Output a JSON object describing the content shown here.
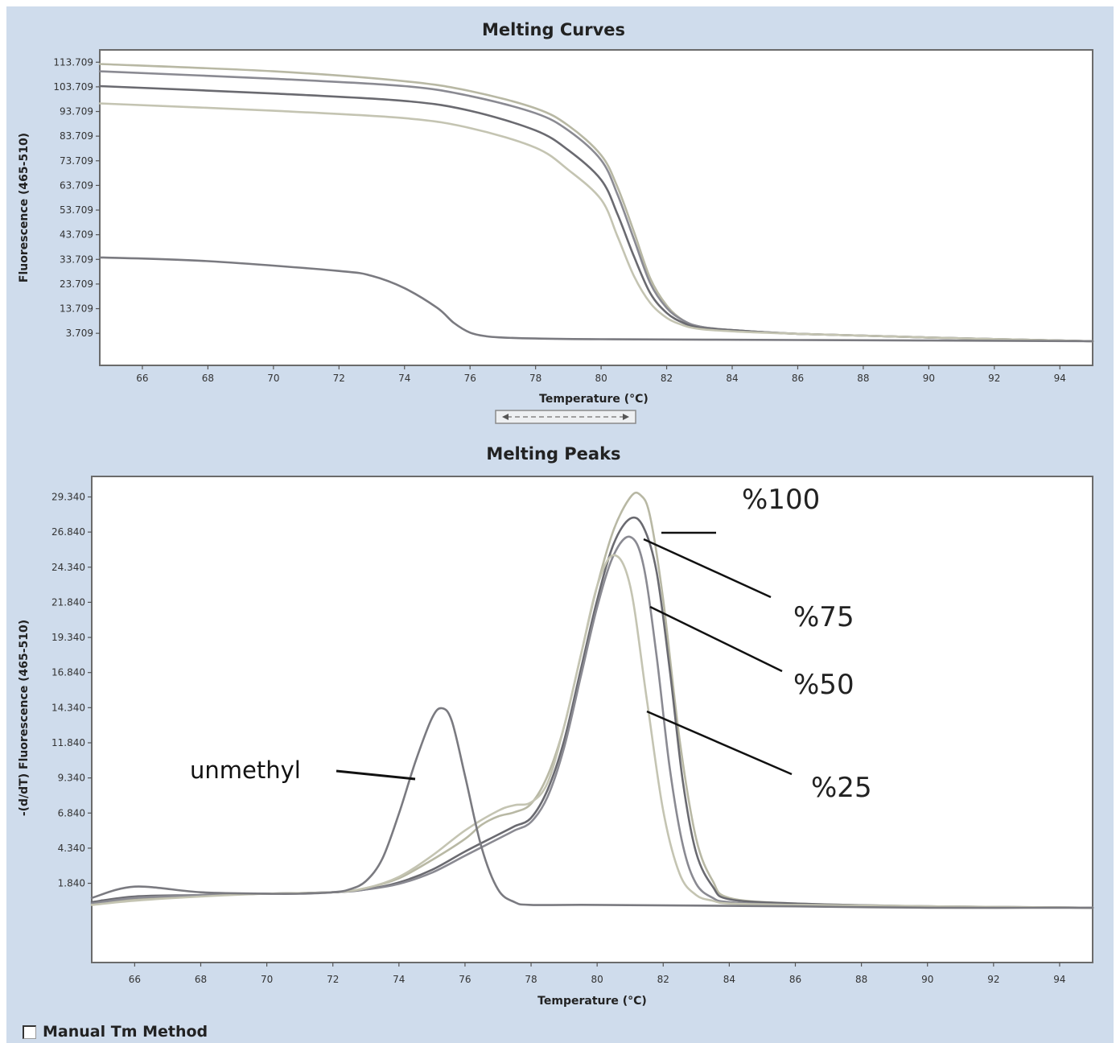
{
  "footer": {
    "manual_tm_label": "Manual Tm Method",
    "manual_tm_checked": false
  },
  "annotations": {
    "unmethyl": "unmethyl",
    "p100": "%100",
    "p75": "%75",
    "p50": "%50",
    "p25": "%25"
  },
  "colors": {
    "panel_background": "#cfdcec",
    "plot_background": "#ffffff",
    "curve_dark": "#6a6a70",
    "curve_mid": "#8a8a92",
    "curve_light": "#b8b8a4",
    "curve_unmethyl": "#7a7a80"
  },
  "chart_data": [
    {
      "type": "line",
      "title": "Melting Curves",
      "xlabel": "Temperature (°C)",
      "ylabel": "Fluorescence (465-510)",
      "xlim": [
        64.7,
        95
      ],
      "ylim": [
        -9.3,
        118.7
      ],
      "x_ticks": [
        66,
        68,
        70,
        72,
        74,
        76,
        78,
        80,
        82,
        84,
        86,
        88,
        90,
        92,
        94
      ],
      "y_ticks": [
        3.709,
        13.709,
        23.709,
        33.709,
        43.709,
        53.709,
        63.709,
        73.709,
        83.709,
        93.709,
        103.709,
        113.709
      ],
      "x_tick_labels": [
        "66",
        "68",
        "70",
        "72",
        "74",
        "76",
        "78",
        "80",
        "82",
        "84",
        "86",
        "88",
        "90",
        "92",
        "94"
      ],
      "y_tick_labels": [
        "3.709",
        "13.709",
        "23.709",
        "33.709",
        "43.709",
        "53.709",
        "63.709",
        "73.709",
        "83.709",
        "93.709",
        "103.709",
        "113.709"
      ],
      "grid": false,
      "series": [
        {
          "color": "#b8b8a4",
          "x": [
            64.7,
            70,
            74,
            76,
            78,
            79,
            80,
            80.5,
            81,
            81.5,
            82,
            82.5,
            83,
            84,
            86,
            90,
            95
          ],
          "y": [
            113,
            110,
            106,
            102,
            95,
            88,
            76,
            63,
            45,
            26,
            15,
            9,
            6.5,
            5,
            3.5,
            2,
            0.5
          ]
        },
        {
          "color": "#8a8a92",
          "x": [
            64.7,
            70,
            74,
            76,
            78,
            79,
            80,
            80.5,
            81,
            81.5,
            82,
            82.5,
            83,
            84,
            86,
            90,
            95
          ],
          "y": [
            110,
            107,
            104,
            100,
            93,
            86,
            74,
            60,
            42,
            24,
            14,
            9,
            6.5,
            5,
            3.5,
            2,
            0.5
          ]
        },
        {
          "color": "#6a6a70",
          "x": [
            64.7,
            70,
            74,
            76,
            78,
            79,
            80,
            80.5,
            81,
            81.5,
            82,
            82.5,
            83,
            84,
            86,
            90,
            95
          ],
          "y": [
            104,
            101,
            98,
            94,
            86,
            78,
            66,
            52,
            35,
            20,
            12,
            8,
            6,
            5,
            3.5,
            2,
            0.5
          ]
        },
        {
          "color": "#c4c4b2",
          "x": [
            64.7,
            70,
            74,
            76,
            78,
            79,
            80,
            80.5,
            81,
            81.5,
            82,
            82.5,
            83,
            84,
            86,
            90,
            95
          ],
          "y": [
            97,
            94,
            91,
            87,
            79,
            70,
            58,
            43,
            27,
            16,
            10,
            7,
            5.5,
            4.5,
            3.5,
            2,
            0.5
          ]
        },
        {
          "color": "#7a7a80",
          "x": [
            64.7,
            68,
            72,
            73,
            74,
            75,
            75.5,
            76,
            76.5,
            77,
            78,
            80,
            86,
            90,
            95
          ],
          "y": [
            34.5,
            33,
            29,
            27,
            22,
            14,
            8,
            4,
            2.5,
            2,
            1.6,
            1.3,
            1,
            0.8,
            0.5
          ]
        }
      ]
    },
    {
      "type": "line",
      "title": "Melting Peaks",
      "xlabel": "Temperature (°C)",
      "ylabel": "-(d/dT) Fluorescence (465-510)",
      "xlim": [
        64.7,
        95
      ],
      "ylim": [
        -3.8,
        30.8
      ],
      "x_ticks": [
        66,
        68,
        70,
        72,
        74,
        76,
        78,
        80,
        82,
        84,
        86,
        88,
        90,
        92,
        94
      ],
      "y_ticks": [
        1.84,
        4.34,
        6.84,
        9.34,
        11.84,
        14.34,
        16.84,
        19.34,
        21.84,
        24.34,
        26.84,
        29.34
      ],
      "x_tick_labels": [
        "66",
        "68",
        "70",
        "72",
        "74",
        "76",
        "78",
        "80",
        "82",
        "84",
        "86",
        "88",
        "90",
        "92",
        "94"
      ],
      "y_tick_labels": [
        "1.840",
        "4.340",
        "6.840",
        "9.340",
        "11.840",
        "14.340",
        "16.840",
        "19.340",
        "21.840",
        "24.340",
        "26.840",
        "29.340"
      ],
      "grid": false,
      "series": [
        {
          "color": "#b8b8a4",
          "x": [
            64.7,
            66,
            68,
            70,
            72,
            73,
            74,
            75,
            76,
            76.5,
            77,
            77.5,
            78,
            78.5,
            79,
            79.5,
            80,
            80.5,
            81,
            81.3,
            81.6,
            82,
            82.5,
            83,
            83.5,
            84,
            86,
            90,
            95
          ],
          "y": [
            0.3,
            0.7,
            1,
            1.1,
            1.2,
            1.5,
            2.2,
            3.5,
            5,
            6,
            6.6,
            6.9,
            7.5,
            9.5,
            13,
            18,
            23,
            27,
            29.3,
            29.5,
            28,
            22,
            12,
            5,
            2,
            0.8,
            0.4,
            0.2,
            0.1
          ]
        },
        {
          "color": "#6a6a70",
          "x": [
            64.7,
            66,
            68,
            70,
            72,
            73,
            74,
            75,
            76,
            77,
            77.5,
            78,
            78.5,
            79,
            79.5,
            80,
            80.5,
            81,
            81.4,
            81.8,
            82.2,
            82.6,
            83,
            83.5,
            84,
            86,
            90,
            95
          ],
          "y": [
            0.5,
            0.9,
            1,
            1.1,
            1.2,
            1.4,
            1.9,
            2.8,
            4.1,
            5.3,
            5.9,
            6.5,
            8.5,
            12,
            17,
            22,
            26,
            27.8,
            27.2,
            24,
            17,
            9,
            4,
            1.6,
            0.7,
            0.4,
            0.2,
            0.1
          ]
        },
        {
          "color": "#8a8a92",
          "x": [
            64.7,
            66,
            68,
            70,
            72,
            73,
            74,
            75,
            76,
            77,
            77.5,
            78,
            78.5,
            79,
            79.5,
            80,
            80.5,
            81,
            81.4,
            81.8,
            82.2,
            82.6,
            83,
            83.5,
            84,
            86,
            90,
            95
          ],
          "y": [
            0.4,
            0.8,
            1,
            1.1,
            1.2,
            1.4,
            1.8,
            2.6,
            3.8,
            5,
            5.6,
            6.2,
            8,
            11.5,
            16.5,
            21.5,
            25.2,
            26.5,
            24.5,
            18,
            10,
            4.5,
            1.8,
            0.8,
            0.5,
            0.3,
            0.2,
            0.1
          ]
        },
        {
          "color": "#c4c4b2",
          "x": [
            64.7,
            66,
            68,
            70,
            72,
            73,
            74,
            75,
            76,
            77,
            77.5,
            78,
            78.5,
            79,
            79.5,
            80,
            80.5,
            81,
            81.5,
            82,
            82.5,
            83,
            83.5,
            84,
            86,
            90,
            95
          ],
          "y": [
            0.3,
            0.6,
            0.9,
            1.1,
            1.2,
            1.5,
            2.3,
            3.8,
            5.6,
            7,
            7.4,
            7.6,
            9,
            13,
            18,
            23,
            25.2,
            23,
            15,
            7,
            2.5,
            1,
            0.6,
            0.4,
            0.3,
            0.2,
            0.1
          ]
        },
        {
          "color": "#7a7a80",
          "x": [
            64.7,
            66,
            68,
            70,
            71,
            72,
            72.5,
            73,
            73.5,
            74,
            74.5,
            75,
            75.3,
            75.6,
            76,
            76.5,
            77,
            77.5,
            78,
            80,
            86,
            90,
            95
          ],
          "y": [
            0.8,
            1.6,
            1.2,
            1.1,
            1.1,
            1.2,
            1.4,
            2,
            3.6,
            6.8,
            10.5,
            13.6,
            14.3,
            13.4,
            9.5,
            4.4,
            1.4,
            0.5,
            0.3,
            0.3,
            0.2,
            0.1,
            0.1
          ]
        }
      ]
    }
  ]
}
